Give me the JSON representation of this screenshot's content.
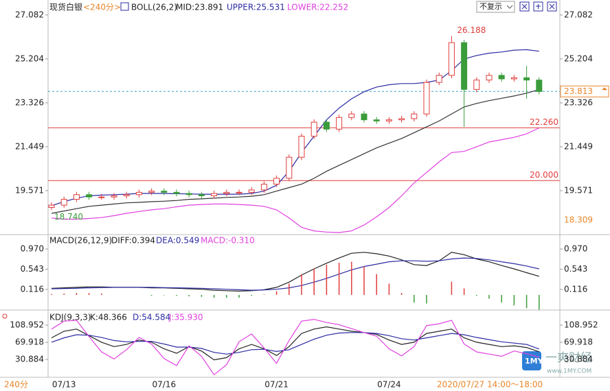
{
  "toolbar": {
    "mode": "不复示"
  },
  "watermark": {
    "logo": "1MY",
    "name": "一爽财经",
    "url": "www.1MY.COM"
  },
  "footer": {
    "period": "240分",
    "time": "2020/07/27 14:00～18:00"
  },
  "chart_data": [
    {
      "type": "candlestick",
      "title": "现货白银",
      "period": "<240分>",
      "indicator": "BOLL(26,2)",
      "categories": [
        null,
        "07/13",
        null,
        null,
        null,
        null,
        null,
        null,
        null,
        "07/16",
        null,
        null,
        null,
        null,
        null,
        null,
        null,
        null,
        "07/21",
        null,
        null,
        null,
        null,
        null,
        null,
        null,
        null,
        "07/24",
        null,
        null,
        null,
        null,
        null,
        null,
        null,
        null,
        null,
        null,
        null,
        null
      ],
      "open": [
        18.85,
        18.95,
        19.2,
        19.4,
        19.3,
        19.3,
        19.35,
        19.4,
        19.5,
        19.55,
        19.5,
        19.45,
        19.4,
        19.35,
        19.45,
        19.5,
        19.5,
        19.6,
        19.85,
        20.1,
        21.0,
        21.9,
        22.5,
        22.2,
        22.7,
        22.85,
        22.6,
        22.55,
        22.6,
        22.65,
        22.85,
        24.2,
        24.5,
        25.9,
        23.9,
        24.3,
        24.5,
        24.35,
        24.4,
        24.3
      ],
      "high": [
        19.07,
        19.32,
        19.52,
        19.52,
        19.42,
        19.47,
        19.52,
        19.62,
        19.67,
        19.67,
        19.62,
        19.57,
        19.52,
        19.57,
        19.62,
        19.62,
        19.72,
        19.97,
        20.22,
        21.12,
        22.02,
        22.62,
        22.62,
        22.82,
        22.97,
        22.97,
        22.72,
        22.72,
        22.77,
        22.97,
        24.32,
        24.62,
        26.188,
        26.02,
        24.42,
        24.62,
        24.62,
        24.52,
        24.9,
        24.42
      ],
      "low": [
        18.74,
        18.83,
        19.08,
        19.18,
        19.18,
        19.18,
        19.23,
        19.28,
        19.38,
        19.38,
        19.33,
        19.28,
        19.23,
        19.23,
        19.33,
        19.38,
        19.38,
        19.48,
        19.73,
        19.98,
        20.88,
        21.78,
        22.08,
        22.08,
        22.58,
        22.48,
        22.43,
        22.43,
        22.48,
        22.53,
        22.73,
        24.08,
        24.38,
        22.3,
        23.78,
        24.18,
        24.23,
        24.23,
        23.5,
        23.69
      ],
      "close": [
        18.95,
        19.2,
        19.4,
        19.3,
        19.3,
        19.35,
        19.4,
        19.5,
        19.55,
        19.5,
        19.45,
        19.4,
        19.35,
        19.45,
        19.5,
        19.5,
        19.6,
        19.85,
        20.1,
        21.0,
        21.9,
        22.5,
        22.2,
        22.7,
        22.85,
        22.6,
        22.55,
        22.6,
        22.65,
        22.85,
        24.2,
        24.5,
        25.9,
        23.9,
        24.3,
        24.5,
        24.35,
        24.4,
        24.3,
        23.81
      ],
      "up_color": "#e23c3c",
      "down_color": "#3b9c3b",
      "series": [
        {
          "name": "MID:23.891",
          "color": "#333333",
          "values": [
            18.6,
            18.7,
            18.8,
            18.9,
            18.95,
            19.0,
            19.05,
            19.07,
            19.1,
            19.12,
            19.15,
            19.2,
            19.22,
            19.25,
            19.28,
            19.3,
            19.33,
            19.4,
            19.55,
            19.7,
            19.85,
            20.1,
            20.4,
            20.65,
            20.9,
            21.15,
            21.4,
            21.6,
            21.8,
            22.05,
            22.3,
            22.55,
            22.85,
            23.15,
            23.3,
            23.42,
            23.52,
            23.62,
            23.74,
            23.891
          ]
        },
        {
          "name": "UPPER:25.531",
          "color": "#2b2ba3",
          "values": [
            18.93,
            19.1,
            19.25,
            19.35,
            19.38,
            19.4,
            19.42,
            19.45,
            19.45,
            19.45,
            19.44,
            19.43,
            19.42,
            19.42,
            19.42,
            19.42,
            19.45,
            19.55,
            19.8,
            20.4,
            21.2,
            21.9,
            22.6,
            23.1,
            23.5,
            23.8,
            24.0,
            24.1,
            24.15,
            24.15,
            24.2,
            24.3,
            24.7,
            25.2,
            25.35,
            25.45,
            25.5,
            25.58,
            25.6,
            25.531
          ]
        },
        {
          "name": "LOWER:22.252",
          "color": "#e040e0",
          "values": [
            18.4,
            18.35,
            18.35,
            18.38,
            18.42,
            18.5,
            18.6,
            18.68,
            18.75,
            18.8,
            18.88,
            18.95,
            18.98,
            19.0,
            19.0,
            18.98,
            18.95,
            18.9,
            18.75,
            18.4,
            18.0,
            17.85,
            17.8,
            17.78,
            17.85,
            18.1,
            18.45,
            18.85,
            19.35,
            19.9,
            20.35,
            20.8,
            21.2,
            21.25,
            21.45,
            21.65,
            21.75,
            21.85,
            22.0,
            22.252
          ]
        }
      ],
      "hlines": [
        {
          "value": 22.26,
          "label": "22.260",
          "color": "#e23c3c"
        },
        {
          "value": 20,
          "label": "20.000",
          "color": "#e23c3c"
        }
      ],
      "last_price": 23.813,
      "last_price_color": "#e8862a",
      "high_label": 26.188,
      "low_label": {
        "value": 18.74,
        "label": "18.740"
      },
      "band_low_label": 18.309,
      "ylim": [
        17.75,
        27.43
      ],
      "yticks": [
        19.571,
        21.449,
        23.326,
        25.204,
        27.082
      ]
    },
    {
      "type": "macd",
      "title": "MACD(26,12,9)",
      "series": [
        {
          "name": "DIFF:0.394",
          "type": "line",
          "color": "#222222",
          "values": [
            0.14,
            0.15,
            0.16,
            0.17,
            0.17,
            0.16,
            0.16,
            0.16,
            0.15,
            0.15,
            0.14,
            0.13,
            0.12,
            0.1,
            0.09,
            0.08,
            0.09,
            0.11,
            0.16,
            0.27,
            0.42,
            0.55,
            0.67,
            0.78,
            0.88,
            0.9,
            0.87,
            0.82,
            0.74,
            0.64,
            0.62,
            0.72,
            0.9,
            0.85,
            0.76,
            0.7,
            0.62,
            0.55,
            0.47,
            0.394
          ]
        },
        {
          "name": "DEA:0.549",
          "type": "line",
          "color": "#2b2ba3",
          "values": [
            0.13,
            0.135,
            0.14,
            0.15,
            0.155,
            0.16,
            0.16,
            0.16,
            0.16,
            0.155,
            0.15,
            0.145,
            0.14,
            0.13,
            0.12,
            0.11,
            0.1,
            0.105,
            0.12,
            0.15,
            0.2,
            0.27,
            0.35,
            0.44,
            0.53,
            0.6,
            0.65,
            0.7,
            0.72,
            0.72,
            0.71,
            0.72,
            0.76,
            0.78,
            0.77,
            0.74,
            0.7,
            0.66,
            0.61,
            0.549
          ]
        },
        {
          "name": "MACD:-0.310",
          "type": "bar",
          "color": "#e23c3c",
          "negative_color": "#3b9c3b",
          "legend_color": "#e040e0",
          "values": [
            0.02,
            0.03,
            0.04,
            0.04,
            0.03,
            0,
            0,
            0,
            -0.02,
            -0.01,
            -0.02,
            -0.03,
            -0.04,
            -0.06,
            -0.06,
            -0.06,
            -0.02,
            0.01,
            0.08,
            0.24,
            0.44,
            0.56,
            0.64,
            0.68,
            0.7,
            0.6,
            0.44,
            0.24,
            0.04,
            -0.16,
            -0.18,
            0,
            0.28,
            0.14,
            -0.02,
            -0.08,
            -0.16,
            -0.22,
            -0.28,
            -0.31
          ]
        }
      ],
      "ylim": [
        -0.29,
        1.23
      ],
      "yticks": [
        0.116,
        0.543,
        {
          "value": 0.97,
          "label": "0.970"
        }
      ]
    },
    {
      "type": "kdj",
      "title": "KDJ(9,3,3)",
      "series": [
        {
          "name": "K:48.366",
          "type": "line",
          "color": "#222222",
          "values": [
            80,
            95,
            100,
            85,
            70,
            60,
            65,
            75,
            70,
            55,
            45,
            60,
            50,
            30,
            35,
            55,
            65,
            55,
            40,
            60,
            90,
            100,
            105,
            100,
            95,
            92,
            88,
            75,
            65,
            70,
            90,
            95,
            100,
            80,
            70,
            65,
            60,
            62,
            58,
            48.366
          ]
        },
        {
          "name": "D:54.584",
          "type": "line",
          "color": "#2b2ba3",
          "values": [
            70,
            80,
            87,
            86,
            81,
            74,
            71,
            72,
            72,
            66,
            59,
            59,
            56,
            47,
            43,
            47,
            53,
            54,
            49,
            53,
            65,
            77,
            86,
            91,
            92,
            92,
            90,
            85,
            78,
            75,
            80,
            85,
            90,
            87,
            81,
            76,
            71,
            68,
            65,
            54.584
          ]
        },
        {
          "name": "J:35.930",
          "type": "line",
          "color": "#e040e0",
          "values": [
            100,
            118,
            120,
            83,
            48,
            32,
            53,
            81,
            66,
            33,
            17,
            62,
            38,
            -4,
            19,
            71,
            89,
            57,
            22,
            74,
            118,
            122,
            115,
            110,
            101,
            92,
            84,
            55,
            39,
            60,
            108,
            112,
            120,
            66,
            48,
            43,
            38,
            50,
            44,
            35.93
          ]
        }
      ],
      "ylim": [
        -6.6,
        138.6
      ],
      "yticks": [
        30.884,
        69.918,
        108.952
      ]
    }
  ]
}
